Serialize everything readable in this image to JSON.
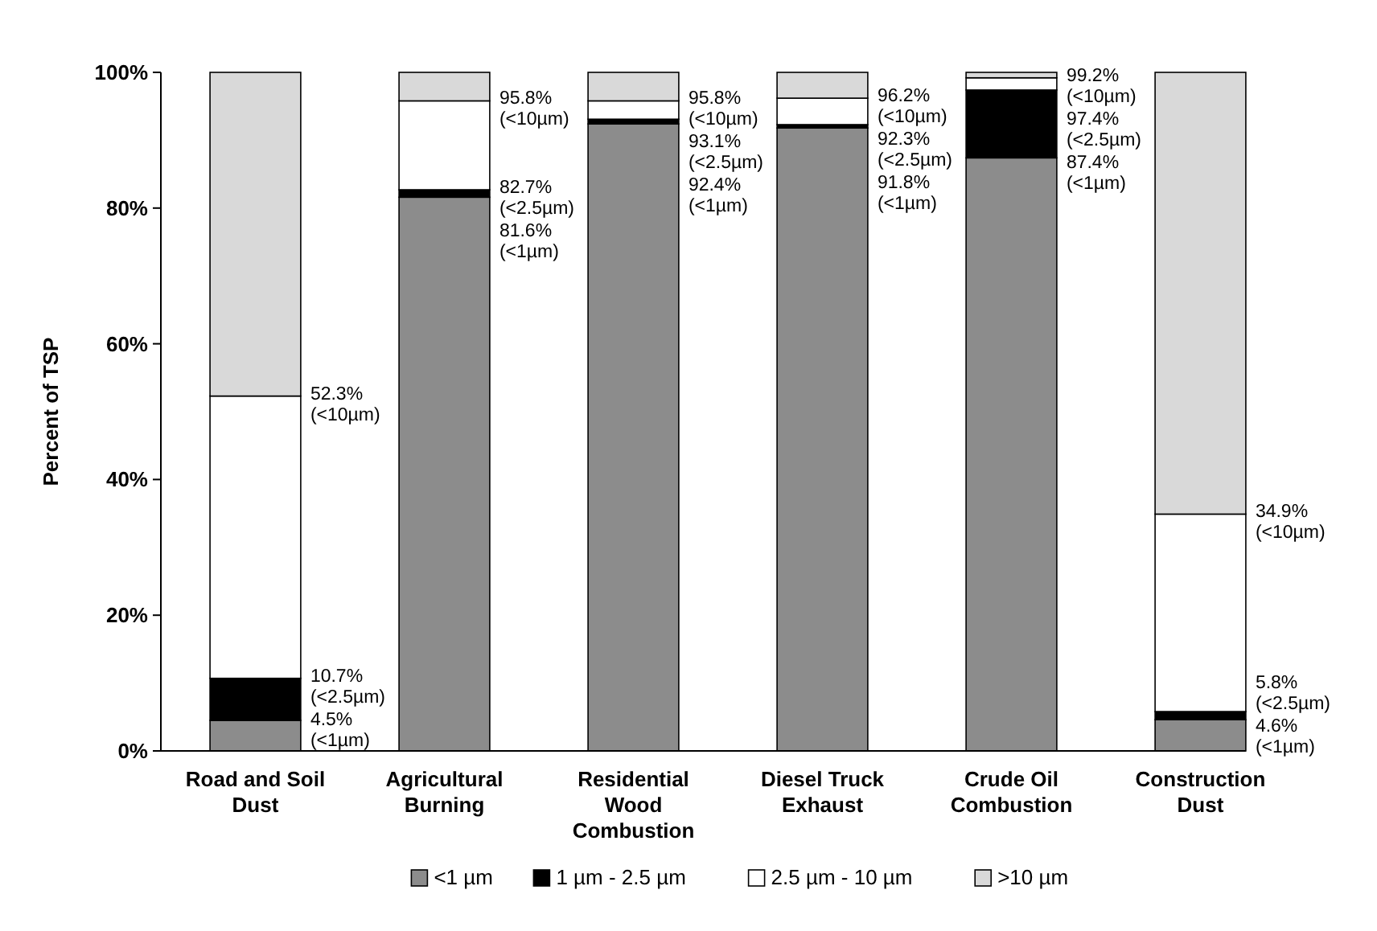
{
  "chart_data": {
    "type": "bar",
    "stacked": true,
    "ylabel": "Percent of TSP",
    "categories": [
      "Road and Soil Dust",
      "Agricultural Burning",
      "Residential Wood Combustion",
      "Diesel Truck Exhaust",
      "Crude Oil Combustion",
      "Construction Dust"
    ],
    "series": [
      {
        "name": "<1 µm",
        "color": "#8c8c8c",
        "values": [
          4.5,
          81.6,
          92.4,
          91.8,
          87.4,
          4.6
        ]
      },
      {
        "name": "1 µm - 2.5 µm",
        "color": "#000000",
        "values": [
          6.2,
          1.1,
          0.7,
          0.5,
          10.0,
          1.2
        ]
      },
      {
        "name": "2.5 µm - 10 µm",
        "color": "#ffffff",
        "values": [
          41.6,
          13.1,
          2.7,
          3.9,
          1.8,
          29.1
        ]
      },
      {
        "name": ">10 µm",
        "color": "#d9d9d9",
        "values": [
          47.7,
          4.2,
          4.2,
          3.8,
          0.8,
          65.1
        ]
      }
    ],
    "ylim": [
      0,
      100
    ],
    "yticks": [
      {
        "value": 0,
        "label": "0%"
      },
      {
        "value": 20,
        "label": "20%"
      },
      {
        "value": 40,
        "label": "40%"
      },
      {
        "value": 60,
        "label": "60%"
      },
      {
        "value": 80,
        "label": "80%"
      },
      {
        "value": 100,
        "label": "100%"
      }
    ],
    "legend": "bottom",
    "annotations": [
      "52.3%\n(<10µm)",
      "10.7%\n(<2.5µm)",
      "4.5%\n(<1µm)",
      "95.8%\n(<10µm)",
      "82.7%\n(<2.5µm)",
      "81.6%\n(<1µm)",
      "95.8%\n(<10µm)",
      "93.1%\n(<2.5µm)",
      "92.4%\n(<1µm)",
      "96.2%\n(<10µm)",
      "92.3%\n(<2.5µm)",
      "91.8%\n(<1µm)",
      "99.2%\n(<10µm)",
      "97.4%\n(<2.5µm)",
      "87.4%\n(<1µm)",
      "34.9%\n(<10µm)",
      "5.8%\n(<2.5µm)",
      "4.6%\n(<1µm)"
    ]
  }
}
